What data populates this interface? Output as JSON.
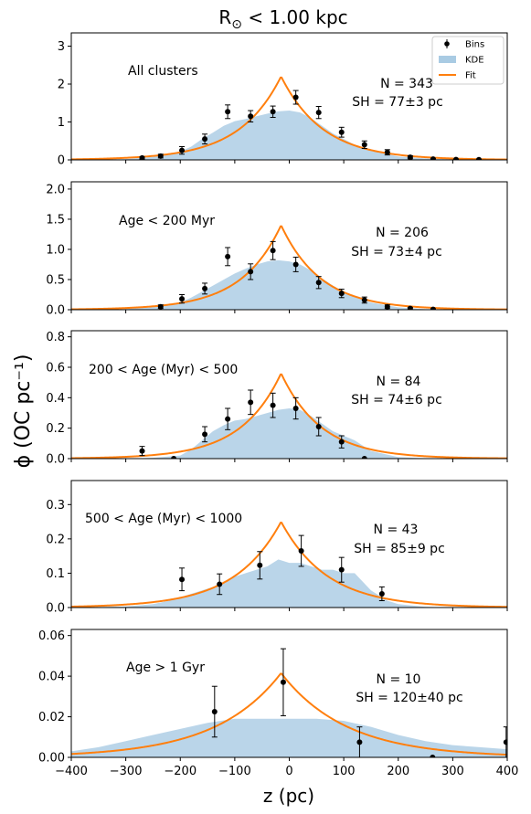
{
  "figure_title": "R⊙ < 1.00 kpc",
  "legend": {
    "entries": [
      {
        "label": "Bins",
        "color": "#000000"
      },
      {
        "label": "KDE",
        "color": "#a9cbe3"
      },
      {
        "label": "Fit",
        "color": "#ff7f0e"
      }
    ],
    "placement": "upper-right of top panel"
  },
  "chart_data": [
    {
      "type": "line",
      "panel_label": "All clusters",
      "n_label": "N = 343",
      "sh_label": "SH = 77±3 pc",
      "xlabel": "z (pc)",
      "ylabel": "ϕ (OC pc⁻¹)",
      "xlim": [
        -400,
        400
      ],
      "ylim": [
        0,
        3.35
      ],
      "yticks": [
        0,
        1,
        2,
        3
      ],
      "ytick_labels": [
        "0",
        "1",
        "2",
        "3"
      ],
      "fit": {
        "peak_z": -15,
        "peak": 2.2,
        "scale_height": 77
      },
      "kde": {
        "x": [
          -400,
          -300,
          -250,
          -200,
          -180,
          -160,
          -140,
          -120,
          -100,
          -80,
          -60,
          -40,
          -20,
          0,
          20,
          40,
          60,
          80,
          100,
          120,
          150,
          200,
          250,
          300,
          350,
          400
        ],
        "y": [
          0,
          0.02,
          0.08,
          0.22,
          0.35,
          0.55,
          0.72,
          0.9,
          1.02,
          1.08,
          1.15,
          1.22,
          1.28,
          1.3,
          1.25,
          1.1,
          0.9,
          0.7,
          0.55,
          0.4,
          0.25,
          0.09,
          0.04,
          0.015,
          0.005,
          0
        ]
      },
      "bins": {
        "x": [
          -270,
          -236,
          -197,
          -155,
          -113,
          -71,
          -30,
          12,
          54,
          96,
          138,
          180,
          222,
          264,
          306,
          348
        ],
        "y": [
          0.05,
          0.1,
          0.25,
          0.55,
          1.27,
          1.15,
          1.27,
          1.65,
          1.25,
          0.73,
          0.4,
          0.2,
          0.07,
          0.02,
          0.01,
          0.005
        ],
        "err": [
          0.03,
          0.05,
          0.1,
          0.13,
          0.18,
          0.15,
          0.15,
          0.18,
          0.16,
          0.13,
          0.1,
          0.07,
          0.04,
          0.02,
          0.01,
          0.01
        ]
      }
    },
    {
      "type": "line",
      "panel_label": "Age < 200 Myr",
      "n_label": "N = 206",
      "sh_label": "SH = 73±4 pc",
      "xlim": [
        -400,
        400
      ],
      "ylim": [
        0,
        2.12
      ],
      "yticks": [
        0,
        0.5,
        1.0,
        1.5,
        2.0
      ],
      "ytick_labels": [
        "0.0",
        "0.5",
        "1.0",
        "1.5",
        "2.0"
      ],
      "fit": {
        "peak_z": -15,
        "peak": 1.4,
        "scale_height": 73
      },
      "kde": {
        "x": [
          -400,
          -300,
          -250,
          -200,
          -180,
          -160,
          -140,
          -120,
          -100,
          -80,
          -60,
          -40,
          -20,
          0,
          20,
          40,
          60,
          80,
          100,
          120,
          150,
          200,
          250,
          300,
          350,
          400
        ],
        "y": [
          0,
          0.01,
          0.05,
          0.12,
          0.2,
          0.3,
          0.4,
          0.5,
          0.6,
          0.68,
          0.75,
          0.8,
          0.82,
          0.8,
          0.75,
          0.65,
          0.52,
          0.4,
          0.3,
          0.22,
          0.12,
          0.04,
          0.01,
          0.005,
          0,
          0
        ]
      },
      "bins": {
        "x": [
          -236,
          -197,
          -155,
          -113,
          -71,
          -30,
          12,
          54,
          96,
          138,
          180,
          222,
          264
        ],
        "y": [
          0.05,
          0.18,
          0.35,
          0.88,
          0.63,
          0.98,
          0.75,
          0.45,
          0.27,
          0.16,
          0.05,
          0.02,
          0.005
        ],
        "err": [
          0.03,
          0.07,
          0.09,
          0.15,
          0.13,
          0.15,
          0.12,
          0.1,
          0.07,
          0.05,
          0.03,
          0.02,
          0.01
        ]
      }
    },
    {
      "type": "line",
      "panel_label": "200 < Age (Myr) < 500",
      "n_label": "N = 84",
      "sh_label": "SH = 74±6 pc",
      "xlim": [
        -400,
        400
      ],
      "ylim": [
        0,
        0.84
      ],
      "yticks": [
        0,
        0.2,
        0.4,
        0.6,
        0.8
      ],
      "ytick_labels": [
        "0.0",
        "0.2",
        "0.4",
        "0.6",
        "0.8"
      ],
      "fit": {
        "peak_z": -15,
        "peak": 0.56,
        "scale_height": 74
      },
      "kde": {
        "x": [
          -400,
          -300,
          -250,
          -200,
          -180,
          -160,
          -140,
          -120,
          -100,
          -80,
          -60,
          -40,
          -20,
          0,
          20,
          40,
          60,
          80,
          100,
          120,
          150,
          200,
          250,
          300,
          350,
          400
        ],
        "y": [
          0,
          0,
          0.005,
          0.02,
          0.06,
          0.12,
          0.18,
          0.22,
          0.25,
          0.26,
          0.28,
          0.3,
          0.32,
          0.33,
          0.32,
          0.28,
          0.23,
          0.18,
          0.15,
          0.12,
          0.05,
          0.01,
          0.002,
          0,
          0,
          0
        ]
      },
      "bins": {
        "x": [
          -270,
          -212,
          -155,
          -113,
          -71,
          -30,
          12,
          54,
          96,
          138
        ],
        "y": [
          0.05,
          0.0,
          0.16,
          0.26,
          0.37,
          0.35,
          0.33,
          0.21,
          0.11,
          0.0
        ],
        "err": [
          0.03,
          0.0,
          0.05,
          0.07,
          0.08,
          0.08,
          0.07,
          0.06,
          0.04,
          0.0
        ]
      }
    },
    {
      "type": "line",
      "panel_label": "500 < Age (Myr) < 1000",
      "n_label": "N = 43",
      "sh_label": "SH = 85±9 pc",
      "xlim": [
        -400,
        400
      ],
      "ylim": [
        0,
        0.37
      ],
      "yticks": [
        0,
        0.1,
        0.2,
        0.3
      ],
      "ytick_labels": [
        "0.0",
        "0.1",
        "0.2",
        "0.3"
      ],
      "fit": {
        "peak_z": -15,
        "peak": 0.25,
        "scale_height": 85
      },
      "kde": {
        "x": [
          -400,
          -300,
          -250,
          -220,
          -200,
          -180,
          -160,
          -140,
          -120,
          -100,
          -80,
          -60,
          -40,
          -20,
          0,
          20,
          40,
          60,
          80,
          100,
          120,
          150,
          180,
          200,
          250,
          300,
          400
        ],
        "y": [
          0,
          0.003,
          0.01,
          0.02,
          0.03,
          0.04,
          0.05,
          0.06,
          0.07,
          0.09,
          0.1,
          0.11,
          0.12,
          0.14,
          0.13,
          0.13,
          0.12,
          0.11,
          0.11,
          0.1,
          0.1,
          0.05,
          0.02,
          0.01,
          0.002,
          0,
          0
        ]
      },
      "bins": {
        "x": [
          -197,
          -128,
          -54,
          22,
          96,
          170
        ],
        "y": [
          0.082,
          0.068,
          0.123,
          0.165,
          0.11,
          0.04
        ],
        "err": [
          0.033,
          0.03,
          0.04,
          0.045,
          0.036,
          0.02
        ]
      }
    },
    {
      "type": "line",
      "panel_label": "Age > 1 Gyr",
      "n_label": "N = 10",
      "sh_label": "SH = 120±40 pc",
      "xlim": [
        -400,
        400
      ],
      "ylim": [
        0,
        0.063
      ],
      "yticks": [
        0,
        0.02,
        0.04,
        0.06
      ],
      "ytick_labels": [
        "0.00",
        "0.02",
        "0.04",
        "0.06"
      ],
      "fit": {
        "peak_z": -15,
        "peak": 0.0415,
        "scale_height": 120
      },
      "kde": {
        "x": [
          -400,
          -350,
          -300,
          -250,
          -200,
          -150,
          -100,
          -50,
          0,
          50,
          100,
          150,
          200,
          250,
          300,
          350,
          400
        ],
        "y": [
          0.003,
          0.005,
          0.008,
          0.011,
          0.014,
          0.017,
          0.019,
          0.019,
          0.019,
          0.019,
          0.018,
          0.015,
          0.011,
          0.008,
          0.006,
          0.005,
          0.004
        ]
      },
      "bins": {
        "x": [
          -137,
          -11,
          129,
          263,
          398
        ],
        "y": [
          0.0225,
          0.037,
          0.0075,
          0.0,
          0.0075
        ],
        "err": [
          0.0125,
          0.0165,
          0.0075,
          0.0,
          0.0075
        ]
      }
    }
  ],
  "x_axis": {
    "ticks": [
      -400,
      -300,
      -200,
      -100,
      0,
      100,
      200,
      300,
      400
    ],
    "tick_labels": [
      "−400",
      "−300",
      "−200",
      "−100",
      "0",
      "100",
      "200",
      "300",
      "400"
    ]
  }
}
